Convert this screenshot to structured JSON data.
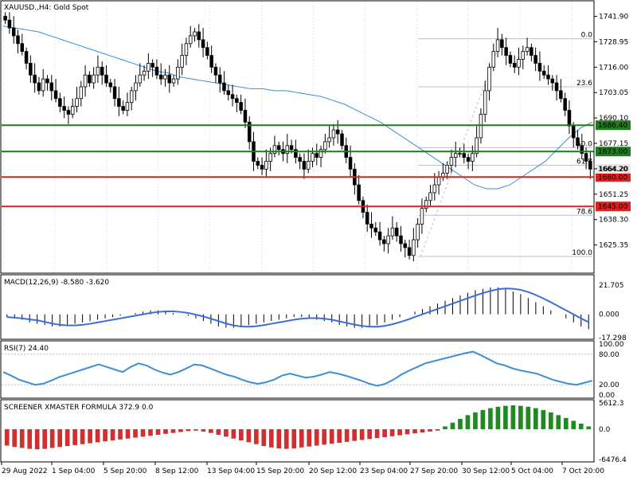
{
  "header": {
    "symbol": "XAUUSD.,H4:  Gold Spot"
  },
  "colors": {
    "candle": "#000000",
    "ma": "#3a8fd6",
    "macd_signal": "#3a6fd6",
    "rsi": "#3a8fd6",
    "resistance": "#1f7a1f",
    "support": "#e02020",
    "screener_neg": "#d03030",
    "screener_pos": "#1f8a1f",
    "fib": "#c0c0c0",
    "grid": "#e6e6e6"
  },
  "price_panel": {
    "ymin": 1613.0,
    "ymax": 1747.0,
    "price_ticks": [
      "1741.90",
      "1728.95",
      "1716.00",
      "1703.05",
      "1690.10",
      "1677.15",
      "1664.20",
      "1651.25",
      "1638.30",
      "1625.35"
    ],
    "levels": [
      {
        "label": "1686.40",
        "value": 1686.4,
        "kind": "resistance"
      },
      {
        "label": "1673.00",
        "value": 1673.0,
        "kind": "resistance"
      },
      {
        "label": "1660.00",
        "value": 1660.0,
        "kind": "support"
      },
      {
        "label": "1645.00",
        "value": 1645.0,
        "kind": "support"
      }
    ],
    "fib_levels": [
      {
        "label": "0.0",
        "value": 1730.5
      },
      {
        "label": "23.6",
        "value": 1706.0
      },
      {
        "label": "50.0",
        "value": 1675.0
      },
      {
        "label": "61.8",
        "value": 1666.0
      },
      {
        "label": "78.6",
        "value": 1640.5
      },
      {
        "label": "100.0",
        "value": 1619.5
      }
    ],
    "current_price_label": "1664.20"
  },
  "macd_panel": {
    "label": "MACD(12,26,9) -8.580 -3.620",
    "ticks": [
      "21.705",
      "0.000",
      "-17.298"
    ]
  },
  "rsi_panel": {
    "label": "RSI(7) 24.40",
    "ticks": [
      "100.00",
      "80.00",
      "20.00",
      "0.00"
    ]
  },
  "screener_panel": {
    "label": "SCREENER XMASTER FORMULA 372.9 0.0",
    "ticks": [
      "5612.3",
      "0.0",
      "-6476.4"
    ]
  },
  "time_axis": [
    "29 Aug 2022",
    "1 Sep 04:00",
    "5 Sep 20:00",
    "8 Sep 12:00",
    "13 Sep 04:00",
    "15 Sep 20:00",
    "20 Sep 12:00",
    "23 Sep 04:00",
    "27 Sep 20:00",
    "30 Sep 12:00",
    "5 Oct 04:00",
    "7 Oct 20:00"
  ],
  "chart_data": {
    "type": "candlestick",
    "title": "XAUUSD.,H4:  Gold Spot",
    "price_path": [
      1740,
      1736,
      1732,
      1728,
      1724,
      1718,
      1712,
      1708,
      1704,
      1710,
      1708,
      1704,
      1700,
      1696,
      1694,
      1692,
      1696,
      1700,
      1706,
      1712,
      1708,
      1712,
      1716,
      1712,
      1708,
      1706,
      1700,
      1696,
      1694,
      1698,
      1704,
      1708,
      1712,
      1714,
      1718,
      1716,
      1712,
      1710,
      1712,
      1708,
      1710,
      1716,
      1722,
      1728,
      1732,
      1734,
      1730,
      1726,
      1722,
      1716,
      1712,
      1708,
      1704,
      1702,
      1700,
      1698,
      1694,
      1688,
      1678,
      1668,
      1666,
      1664,
      1668,
      1672,
      1676,
      1674,
      1672,
      1676,
      1674,
      1670,
      1668,
      1664,
      1668,
      1672,
      1670,
      1674,
      1678,
      1680,
      1684,
      1682,
      1676,
      1670,
      1664,
      1656,
      1648,
      1642,
      1636,
      1634,
      1632,
      1628,
      1626,
      1630,
      1634,
      1630,
      1626,
      1624,
      1620,
      1628,
      1636,
      1644,
      1648,
      1652,
      1656,
      1660,
      1662,
      1666,
      1670,
      1672,
      1672,
      1670,
      1668,
      1672,
      1680,
      1692,
      1704,
      1716,
      1724,
      1730,
      1726,
      1722,
      1718,
      1716,
      1720,
      1724,
      1726,
      1722,
      1718,
      1714,
      1712,
      1710,
      1708,
      1704,
      1700,
      1694,
      1686,
      1680,
      1676,
      1672,
      1668,
      1664
    ],
    "ma_path": [
      1737,
      1736,
      1735,
      1734,
      1732,
      1730,
      1728,
      1726,
      1724,
      1722,
      1720,
      1718,
      1716,
      1714,
      1713,
      1711,
      1710,
      1709,
      1708,
      1707,
      1706,
      1705,
      1705,
      1704,
      1704,
      1703,
      1702,
      1701,
      1699,
      1697,
      1694,
      1691,
      1688,
      1684,
      1680,
      1676,
      1672,
      1668,
      1664,
      1660,
      1656,
      1654,
      1654,
      1656,
      1660,
      1664,
      1668,
      1674,
      1680,
      1685,
      1688
    ],
    "macd_hist": [
      -2,
      -3,
      -4,
      -6,
      -7,
      -8,
      -9,
      -9,
      -8,
      -7,
      -6,
      -5,
      -4,
      -3,
      -2,
      -1,
      0,
      1,
      2,
      3,
      3,
      2,
      1,
      0,
      -1,
      -3,
      -5,
      -7,
      -9,
      -10,
      -10,
      -9,
      -8,
      -7,
      -6,
      -5,
      -4,
      -3,
      -2,
      -2,
      -3,
      -4,
      -5,
      -6,
      -8,
      -9,
      -10,
      -10,
      -9,
      -8,
      -6,
      -4,
      -2,
      0,
      2,
      4,
      6,
      8,
      10,
      12,
      14,
      16,
      18,
      19,
      20,
      20,
      19,
      17,
      15,
      12,
      9,
      6,
      3,
      0,
      -3,
      -6,
      -9,
      -11
    ],
    "rsi_path": [
      45,
      38,
      30,
      25,
      20,
      22,
      28,
      35,
      40,
      45,
      50,
      55,
      60,
      55,
      50,
      45,
      55,
      62,
      58,
      50,
      44,
      40,
      45,
      52,
      60,
      58,
      52,
      46,
      40,
      36,
      30,
      25,
      22,
      25,
      30,
      38,
      42,
      38,
      34,
      36,
      40,
      45,
      42,
      38,
      33,
      28,
      22,
      18,
      22,
      30,
      40,
      48,
      55,
      62,
      66,
      70,
      74,
      78,
      82,
      85,
      78,
      70,
      62,
      58,
      52,
      48,
      45,
      42,
      36,
      30,
      26,
      22,
      20,
      24,
      28
    ],
    "screener": [
      -3500,
      -3800,
      -4000,
      -4200,
      -4300,
      -4200,
      -4000,
      -3800,
      -3600,
      -3400,
      -3200,
      -3000,
      -2800,
      -2600,
      -2400,
      -2200,
      -2000,
      -1800,
      -1600,
      -1400,
      -1200,
      -1000,
      -800,
      -600,
      -400,
      -300,
      -500,
      -800,
      -1200,
      -1600,
      -2000,
      -2400,
      -2800,
      -3200,
      -3600,
      -3900,
      -4100,
      -4200,
      -4100,
      -3900,
      -3700,
      -3500,
      -3300,
      -3100,
      -2900,
      -2700,
      -2500,
      -2300,
      -2100,
      -1900,
      -1700,
      -1500,
      -1300,
      -1100,
      -900,
      -700,
      -500,
      -300,
      600,
      1400,
      2200,
      3000,
      3600,
      4100,
      4500,
      4800,
      5000,
      5100,
      5000,
      4800,
      4500,
      4100,
      3600,
      3000,
      2400,
      1800,
      1200,
      600
    ]
  }
}
